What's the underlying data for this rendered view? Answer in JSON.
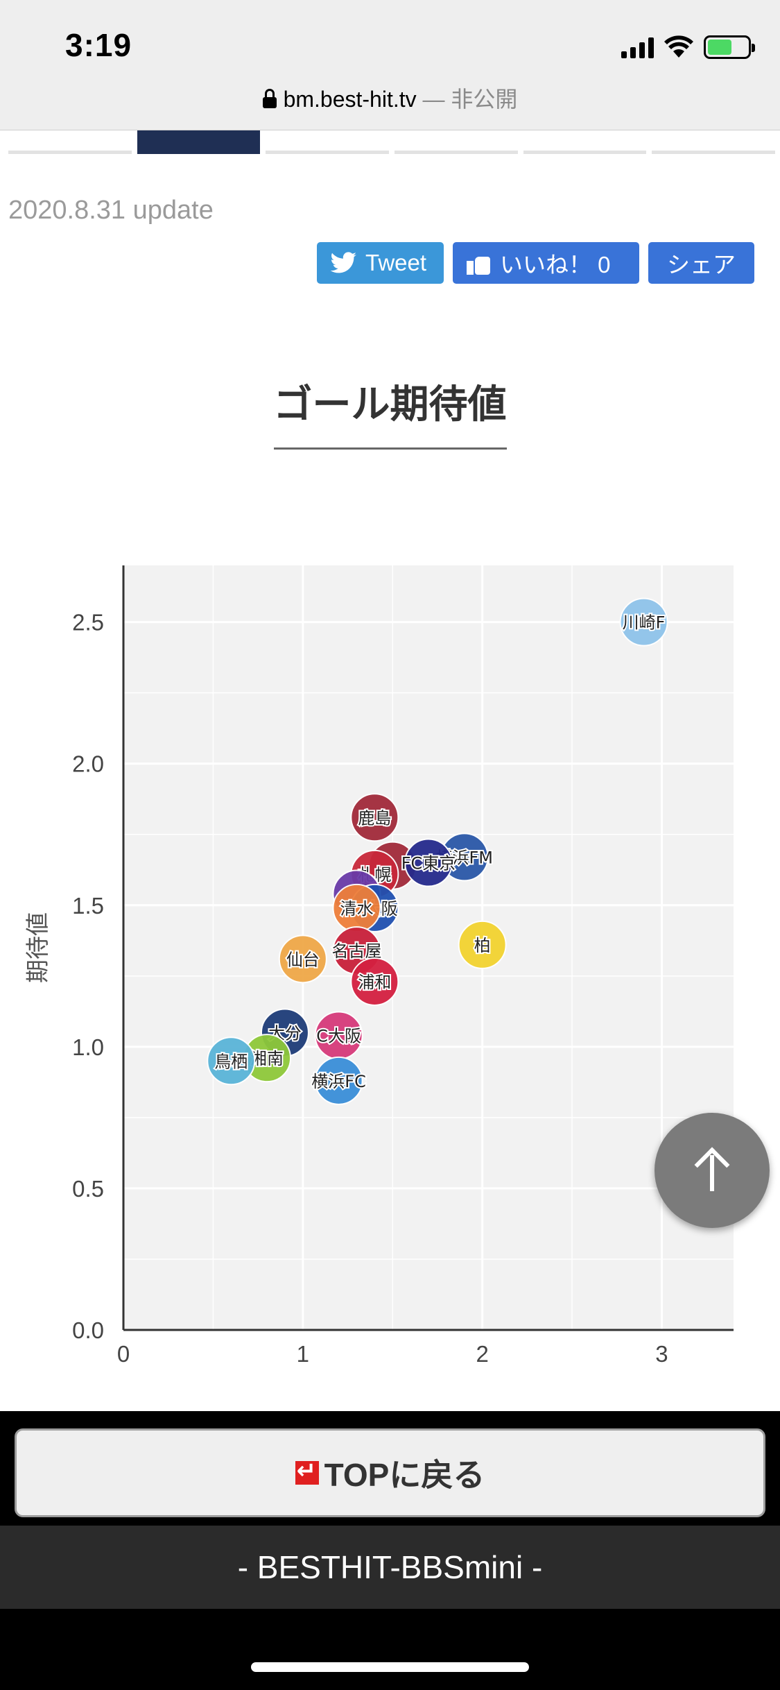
{
  "status_bar": {
    "time": "3:19"
  },
  "browser": {
    "domain": "bm.best-hit.tv",
    "private_label": "— 非公開"
  },
  "header": {
    "update_text": "2020.8.31 update"
  },
  "social": {
    "tweet_label": "Tweet",
    "like_label": "いいね！ 0",
    "share_label": "シェア"
  },
  "section": {
    "title": "ゴール期待値"
  },
  "chart_data": {
    "type": "scatter",
    "title": "",
    "xlabel": "",
    "ylabel": "期待値",
    "xlim": [
      0,
      3.4
    ],
    "ylim": [
      0,
      2.7
    ],
    "x_ticks": [
      "0",
      "1",
      "2",
      "3"
    ],
    "y_ticks": [
      "0.0",
      "0.5",
      "1.0",
      "1.5",
      "2.0",
      "2.5"
    ],
    "grid": true,
    "points": [
      {
        "label": "川崎F",
        "x": 2.9,
        "y": 2.5,
        "color": "#8ec3ea"
      },
      {
        "label": "鹿島",
        "x": 1.4,
        "y": 1.81,
        "color": "#a12a3a"
      },
      {
        "label": "",
        "x": 1.5,
        "y": 1.64,
        "color": "#a12a3a"
      },
      {
        "label": "横浜FM",
        "x": 1.9,
        "y": 1.67,
        "color": "#2a58a8"
      },
      {
        "label": "FC東京",
        "x": 1.7,
        "y": 1.65,
        "color": "#252a8c"
      },
      {
        "label": "札幌",
        "x": 1.4,
        "y": 1.61,
        "color": "#c8283a"
      },
      {
        "label": "",
        "x": 1.3,
        "y": 1.54,
        "color": "#6a3aa8"
      },
      {
        "label": "G大阪",
        "x": 1.4,
        "y": 1.49,
        "color": "#2050b0"
      },
      {
        "label": "清水",
        "x": 1.3,
        "y": 1.49,
        "color": "#ee7f3a"
      },
      {
        "label": "柏",
        "x": 2.0,
        "y": 1.36,
        "color": "#f2d330"
      },
      {
        "label": "仙台",
        "x": 1.0,
        "y": 1.31,
        "color": "#efa848"
      },
      {
        "label": "名古屋",
        "x": 1.3,
        "y": 1.34,
        "color": "#c8203a"
      },
      {
        "label": "浦和",
        "x": 1.4,
        "y": 1.23,
        "color": "#d42040"
      },
      {
        "label": "大分",
        "x": 0.9,
        "y": 1.05,
        "color": "#1e3c78"
      },
      {
        "label": "C大阪",
        "x": 1.2,
        "y": 1.04,
        "color": "#d63a7a"
      },
      {
        "label": "湘南",
        "x": 0.8,
        "y": 0.96,
        "color": "#8ec83a"
      },
      {
        "label": "鳥栖",
        "x": 0.6,
        "y": 0.95,
        "color": "#5ab4d8"
      },
      {
        "label": "横浜FC",
        "x": 1.2,
        "y": 0.88,
        "color": "#3a8ed8"
      }
    ]
  },
  "bottom": {
    "top_button_label": "TOPに戻る",
    "footer_label": "- BESTHIT-BBSmini -"
  }
}
